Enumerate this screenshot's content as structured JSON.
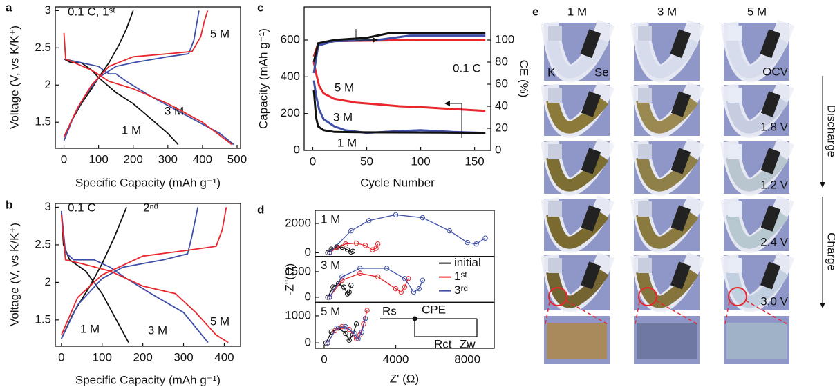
{
  "chart_data": [
    {
      "type": "line",
      "panel": "a",
      "xlabel": "Specific Capacity (mAh g⁻¹)",
      "ylabel": "Voltage (V, vs K/K⁺)",
      "xlim": [
        -25,
        510
      ],
      "ylim": [
        1.15,
        3.05
      ],
      "xticks": [
        0,
        100,
        200,
        300,
        400,
        500
      ],
      "yticks": [
        1.5,
        2.0,
        2.5,
        3.0
      ],
      "annotations": [
        "0.1 C, 1ˢᵗ"
      ],
      "series": [
        {
          "name": "1 M",
          "color": "#111111",
          "x": [
            0,
            20,
            50,
            80,
            100,
            150,
            200,
            250,
            300,
            330,
            null,
            0,
            20,
            50,
            80,
            100,
            130,
            160,
            180,
            200
          ],
          "values": [
            2.35,
            2.3,
            2.3,
            2.2,
            2.1,
            1.9,
            1.75,
            1.55,
            1.35,
            1.2,
            null,
            1.3,
            1.5,
            1.75,
            1.95,
            2.1,
            2.3,
            2.55,
            2.75,
            3.0
          ]
        },
        {
          "name": "3 M",
          "color": "#3f4fa8",
          "x": [
            0,
            50,
            100,
            130,
            150,
            180,
            250,
            350,
            450,
            490,
            null,
            0,
            30,
            60,
            100,
            150,
            200,
            300,
            360,
            375,
            390
          ],
          "values": [
            2.35,
            2.3,
            2.25,
            2.15,
            2.15,
            2.05,
            1.85,
            1.6,
            1.35,
            1.2,
            null,
            1.25,
            1.6,
            1.85,
            2.1,
            2.25,
            2.3,
            2.38,
            2.42,
            2.6,
            3.0
          ]
        },
        {
          "name": "5 M",
          "color": "#e8262b",
          "x": [
            0,
            5,
            40,
            80,
            130,
            200,
            300,
            400,
            485,
            null,
            0,
            40,
            80,
            130,
            200,
            300,
            370,
            395,
            405,
            415
          ],
          "values": [
            2.7,
            2.35,
            2.28,
            2.2,
            2.05,
            1.95,
            1.75,
            1.5,
            1.2,
            null,
            1.3,
            1.7,
            2.0,
            2.25,
            2.38,
            2.42,
            2.45,
            2.65,
            2.85,
            3.0
          ]
        }
      ]
    },
    {
      "type": "line",
      "panel": "b",
      "xlabel": "Specific Capacity (mAh g⁻¹)",
      "ylabel": "Voltage (V, vs K/K⁺)",
      "xlim": [
        -15,
        440
      ],
      "ylim": [
        1.15,
        3.05
      ],
      "xticks": [
        0,
        100,
        200,
        300,
        400
      ],
      "yticks": [
        1.5,
        2.0,
        2.5,
        3.0
      ],
      "annotations": [
        "0.1 C",
        "2ⁿᵈ"
      ],
      "series": [
        {
          "name": "1 M",
          "color": "#111111",
          "x": [
            0,
            5,
            20,
            60,
            100,
            130,
            165,
            null,
            0,
            30,
            70,
            100,
            130,
            160
          ],
          "values": [
            2.95,
            2.5,
            2.3,
            2.15,
            1.85,
            1.55,
            1.2,
            null,
            1.25,
            1.6,
            1.95,
            2.25,
            2.6,
            3.0
          ]
        },
        {
          "name": "3 M",
          "color": "#3f4fa8",
          "x": [
            0,
            10,
            30,
            80,
            120,
            160,
            220,
            300,
            360,
            null,
            0,
            40,
            100,
            150,
            250,
            310,
            320,
            335
          ],
          "values": [
            2.95,
            2.4,
            2.3,
            2.3,
            2.2,
            2.05,
            1.85,
            1.6,
            1.2,
            null,
            1.25,
            1.7,
            2.05,
            2.2,
            2.3,
            2.38,
            2.6,
            3.0
          ]
        },
        {
          "name": "5 M",
          "color": "#e8262b",
          "x": [
            0,
            10,
            50,
            120,
            200,
            280,
            330,
            380,
            410,
            null,
            0,
            40,
            100,
            200,
            300,
            380,
            395,
            405
          ],
          "values": [
            2.9,
            2.3,
            2.25,
            2.15,
            1.95,
            1.85,
            1.6,
            1.3,
            1.2,
            null,
            1.3,
            1.8,
            2.1,
            2.35,
            2.42,
            2.48,
            2.7,
            3.0
          ]
        }
      ]
    },
    {
      "type": "line",
      "panel": "c",
      "xlabel": "Cycle Number",
      "ylabel": "Capacity (mAh g⁻¹)",
      "y2label": "CE (%)",
      "xlim": [
        -8,
        165
      ],
      "ylim": [
        0,
        780
      ],
      "y2lim": [
        0,
        130
      ],
      "xticks": [
        0,
        50,
        100,
        150
      ],
      "yticks": [
        0,
        200,
        400,
        600
      ],
      "y2ticks": [
        0,
        20,
        40,
        60,
        80,
        100
      ],
      "annotations": [
        "0.1 C"
      ],
      "series": [
        {
          "name": "5 M",
          "color": "#e8262b",
          "x": [
            1,
            3,
            6,
            10,
            20,
            40,
            60,
            80,
            100,
            130,
            160
          ],
          "values": [
            480,
            420,
            350,
            310,
            280,
            260,
            250,
            240,
            235,
            225,
            215
          ]
        },
        {
          "name": "3 M",
          "color": "#3f4fa8",
          "x": [
            1,
            3,
            6,
            10,
            20,
            30,
            50,
            80,
            100,
            130,
            160
          ],
          "values": [
            380,
            300,
            220,
            170,
            130,
            110,
            95,
            105,
            110,
            100,
            95
          ]
        },
        {
          "name": "1 M",
          "color": "#111111",
          "x": [
            1,
            3,
            5,
            10,
            20,
            50,
            100,
            160
          ],
          "values": [
            330,
            180,
            130,
            110,
            100,
            98,
            97,
            95
          ]
        },
        {
          "color": "#e8262b",
          "axis": "y2",
          "x": [
            1,
            5,
            20,
            100,
            160
          ],
          "values": [
            85,
            97,
            99,
            100,
            100
          ]
        },
        {
          "color": "#3f4fa8",
          "axis": "y2",
          "x": [
            1,
            5,
            20,
            60,
            90,
            120,
            160
          ],
          "values": [
            70,
            95,
            99,
            100,
            104,
            104,
            104
          ]
        },
        {
          "color": "#111111",
          "axis": "y2",
          "x": [
            1,
            5,
            20,
            50,
            70,
            100,
            160
          ],
          "values": [
            80,
            97,
            100,
            102,
            106,
            106,
            106
          ]
        }
      ]
    },
    {
      "type": "scatter",
      "panel": "d",
      "xlabel": "Z' (Ω)",
      "ylabel": "-Z''(Ω)",
      "xlim": [
        -500,
        9500
      ],
      "xticks": [
        0,
        4000,
        8000
      ],
      "circuit": [
        "Rs",
        "CPE",
        "Rct",
        "Zw"
      ],
      "subplots": [
        {
          "label": "1 M",
          "ylim": [
            -250,
            2900
          ],
          "yticks": [
            0,
            2000
          ],
          "series": [
            {
              "color": "#111111",
              "x": [
                200,
                400,
                700,
                1000,
                1300,
                1500,
                1600
              ],
              "values": [
                0,
                250,
                400,
                380,
                200,
                50,
                100
              ]
            },
            {
              "color": "#e8262b",
              "x": [
                300,
                700,
                1200,
                1800,
                2300,
                2700,
                2900,
                3000
              ],
              "values": [
                0,
                350,
                600,
                650,
                500,
                200,
                300,
                600
              ]
            },
            {
              "color": "#3f4fa8",
              "x": [
                300,
                1500,
                2500,
                4000,
                5500,
                7000,
                8000,
                8500,
                9000
              ],
              "values": [
                0,
                1500,
                2200,
                2600,
                2400,
                1500,
                700,
                600,
                1000
              ]
            }
          ]
        },
        {
          "label": "3 M",
          "ylim": [
            -300,
            2400
          ],
          "yticks": [
            0,
            1500
          ],
          "series": [
            {
              "name": "initial",
              "color": "#111111",
              "x": [
                200,
                500,
                800,
                1100,
                1300,
                1400,
                1500
              ],
              "values": [
                0,
                600,
                800,
                600,
                200,
                300,
                700
              ]
            },
            {
              "name": "1ˢᵗ",
              "color": "#e8262b",
              "x": [
                300,
                1000,
                2000,
                3000,
                4000,
                4300,
                4500,
                4700
              ],
              "values": [
                0,
                1000,
                1400,
                1200,
                500,
                300,
                600,
                1100
              ]
            },
            {
              "name": "3ʳᵈ",
              "color": "#3f4fa8",
              "x": [
                300,
                1000,
                2000,
                3500,
                4500,
                5000,
                5300,
                5500
              ],
              "values": [
                0,
                1200,
                1700,
                1700,
                1100,
                300,
                500,
                1000
              ]
            }
          ]
        },
        {
          "label": "5 M",
          "ylim": [
            -200,
            1500
          ],
          "yticks": [
            0,
            1000
          ],
          "series": [
            {
              "color": "#111111",
              "x": [
                100,
                400,
                800,
                1200,
                1400,
                1600,
                1800
              ],
              "values": [
                0,
                400,
                550,
                350,
                100,
                300,
                700
              ]
            },
            {
              "color": "#e8262b",
              "x": [
                200,
                600,
                1000,
                1400,
                1800,
                2000,
                2200,
                2400
              ],
              "values": [
                0,
                450,
                600,
                500,
                150,
                300,
                700,
                1200
              ]
            },
            {
              "color": "#3f4fa8",
              "x": [
                200,
                700,
                1200,
                1700,
                1900,
                2100,
                2300
              ],
              "values": [
                0,
                550,
                600,
                350,
                150,
                400,
                900
              ]
            }
          ]
        }
      ]
    }
  ],
  "photo_panel": {
    "label": "e",
    "columns": [
      "1 M",
      "3 M",
      "5 M"
    ],
    "electrodes": [
      "K",
      "Se"
    ],
    "states": [
      "OCV",
      "1.8 V",
      "1.2 V",
      "2.4 V",
      "3.0 V"
    ],
    "processes": [
      "Discharge",
      "Charge"
    ]
  }
}
